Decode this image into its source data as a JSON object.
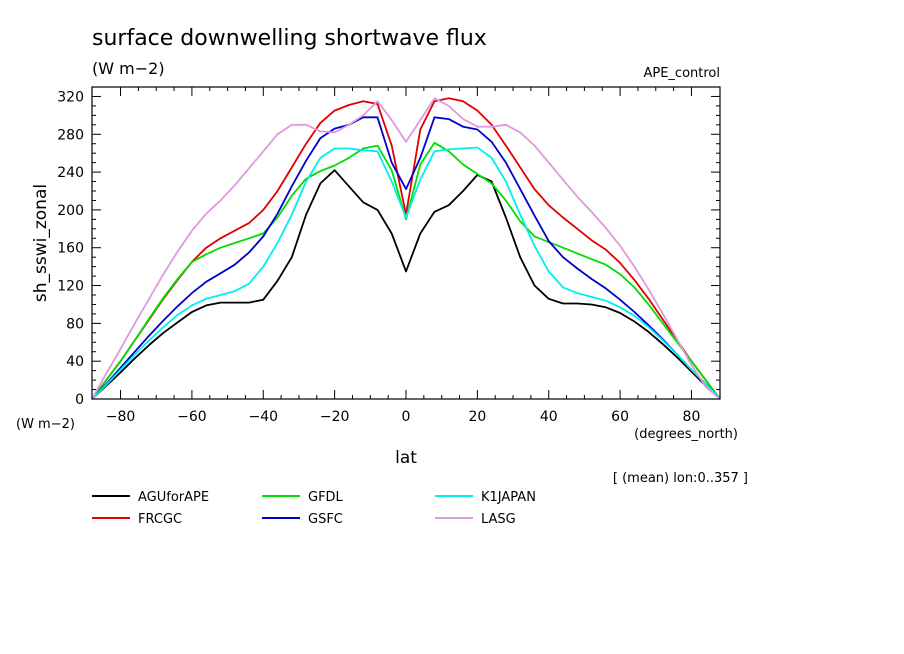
{
  "header": {
    "title": "surface downwelling shortwave flux",
    "units": "(W m−2)",
    "experiment": "APE_control"
  },
  "axes": {
    "ylabel": "sh_sswi_zonal",
    "yunit": "(W m−2)",
    "xlabel": "lat",
    "xunit": "(degrees_north)",
    "note": "[ (mean) lon:0..357 ]"
  },
  "chart_data": {
    "type": "line",
    "title": "surface downwelling shortwave flux",
    "xlabel": "lat",
    "ylabel": "sh_sswi_zonal",
    "xlim": [
      -88,
      88
    ],
    "ylim": [
      0,
      330
    ],
    "xticks": [
      -80,
      -60,
      -40,
      -20,
      0,
      20,
      40,
      60,
      80
    ],
    "yticks": [
      0,
      40,
      80,
      120,
      160,
      200,
      240,
      280,
      320
    ],
    "x": [
      -88,
      -84,
      -80,
      -76,
      -72,
      -68,
      -64,
      -60,
      -56,
      -52,
      -48,
      -44,
      -40,
      -36,
      -32,
      -28,
      -24,
      -20,
      -16,
      -12,
      -8,
      -4,
      0,
      4,
      8,
      12,
      16,
      20,
      24,
      28,
      32,
      36,
      40,
      44,
      48,
      52,
      56,
      60,
      64,
      68,
      72,
      76,
      80,
      84,
      88
    ],
    "series": [
      {
        "name": "AGUforAPE",
        "color": "#000000",
        "values": [
          0,
          14,
          28,
          43,
          57,
          70,
          81,
          92,
          99,
          102,
          102,
          102,
          105,
          125,
          150,
          195,
          228,
          242,
          225,
          208,
          200,
          175,
          135,
          175,
          198,
          205,
          220,
          237,
          230,
          192,
          150,
          120,
          106,
          101,
          101,
          100,
          97,
          91,
          82,
          71,
          58,
          44,
          29,
          14,
          0
        ]
      },
      {
        "name": "FRCGC",
        "color": "#e00000",
        "values": [
          0,
          20,
          40,
          62,
          84,
          106,
          126,
          145,
          160,
          170,
          178,
          186,
          200,
          220,
          245,
          270,
          292,
          305,
          311,
          315,
          312,
          268,
          195,
          285,
          315,
          318,
          315,
          305,
          290,
          268,
          245,
          222,
          205,
          192,
          180,
          168,
          158,
          144,
          126,
          106,
          84,
          62,
          40,
          20,
          0
        ]
      },
      {
        "name": "GFDL",
        "color": "#00dd00",
        "values": [
          0,
          20,
          40,
          62,
          85,
          107,
          127,
          145,
          153,
          160,
          165,
          170,
          175,
          192,
          215,
          233,
          241,
          247,
          255,
          265,
          268,
          242,
          190,
          248,
          271,
          262,
          248,
          238,
          228,
          210,
          188,
          172,
          166,
          160,
          154,
          148,
          142,
          132,
          118,
          100,
          80,
          60,
          40,
          20,
          0
        ]
      },
      {
        "name": "GSFC",
        "color": "#0000cc",
        "values": [
          0,
          16,
          33,
          50,
          67,
          83,
          98,
          112,
          124,
          133,
          142,
          155,
          172,
          196,
          225,
          252,
          276,
          286,
          290,
          298,
          298,
          250,
          222,
          255,
          298,
          296,
          288,
          285,
          272,
          250,
          222,
          194,
          167,
          150,
          138,
          127,
          117,
          105,
          92,
          78,
          63,
          47,
          31,
          16,
          0
        ]
      },
      {
        "name": "K1JAPAN",
        "color": "#00eeee",
        "values": [
          0,
          15,
          31,
          47,
          62,
          76,
          89,
          99,
          106,
          110,
          114,
          122,
          140,
          165,
          195,
          230,
          255,
          265,
          265,
          263,
          262,
          230,
          192,
          232,
          262,
          264,
          265,
          266,
          255,
          230,
          195,
          162,
          135,
          118,
          112,
          108,
          104,
          97,
          88,
          76,
          62,
          47,
          31,
          16,
          0
        ]
      },
      {
        "name": "LASG",
        "color": "#dd99dd",
        "values": [
          0,
          27,
          53,
          80,
          106,
          132,
          156,
          178,
          196,
          210,
          226,
          244,
          262,
          280,
          290,
          290,
          283,
          282,
          290,
          300,
          315,
          295,
          272,
          295,
          318,
          310,
          296,
          288,
          288,
          290,
          282,
          268,
          250,
          232,
          214,
          198,
          181,
          162,
          140,
          116,
          90,
          63,
          36,
          13,
          0
        ]
      }
    ]
  }
}
